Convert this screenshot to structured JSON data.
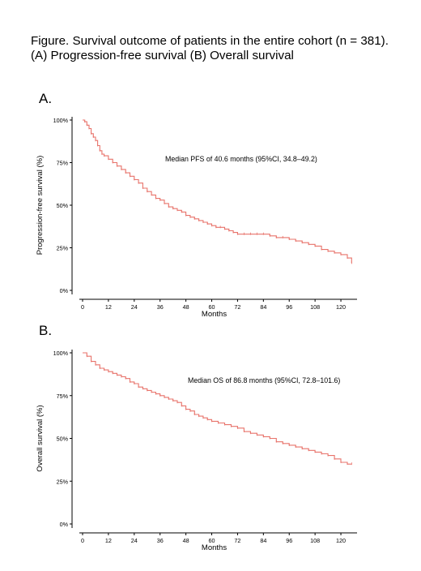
{
  "caption": {
    "line1": "Figure. Survival outcome of patients in the entire cohort (n = 381).",
    "line2": "(A) Progression-free survival (B) Overall survival"
  },
  "colors": {
    "curve": "#e8736b",
    "axis": "#000000"
  },
  "chart_data": [
    {
      "type": "line",
      "panel": "A.",
      "xlabel": "Months",
      "ylabel": "Progression-free survival (%)",
      "annotation": "Median PFS of 40.6 months (95%CI, 34.8–49.2)",
      "xlim": [
        0,
        126
      ],
      "ylim": [
        0,
        100
      ],
      "x_ticks": [
        "0",
        "12",
        "24",
        "36",
        "48",
        "60",
        "72",
        "84",
        "96",
        "108",
        "120"
      ],
      "y_ticks": [
        "0%",
        "25%",
        "50%",
        "75%",
        "100%"
      ],
      "grid": false,
      "series": [
        {
          "x": [
            0,
            1,
            2,
            3,
            4,
            5,
            6,
            7,
            8,
            9,
            10,
            12,
            14,
            16,
            18,
            20,
            22,
            24,
            26,
            28,
            30,
            32,
            34,
            36,
            38,
            40,
            42,
            44,
            46,
            48,
            50,
            52,
            54,
            56,
            58,
            60,
            62,
            64,
            66,
            68,
            70,
            72,
            75,
            78,
            81,
            84,
            87,
            90,
            93,
            96,
            99,
            102,
            105,
            108,
            111,
            114,
            117,
            120,
            123,
            125
          ],
          "y": [
            100,
            99,
            97,
            95,
            92,
            90,
            88,
            85,
            82,
            80,
            79,
            77,
            75,
            73,
            71,
            69,
            67,
            65,
            63,
            60,
            58,
            56,
            54,
            53,
            51,
            49,
            48,
            47,
            46,
            44,
            43,
            42,
            41,
            40,
            39,
            38,
            37,
            37,
            36,
            35,
            34,
            33,
            33,
            33,
            33,
            33,
            32,
            31,
            31,
            30,
            29,
            28,
            27,
            26,
            24,
            23,
            22,
            21,
            19,
            16
          ]
        }
      ]
    },
    {
      "type": "line",
      "panel": "B.",
      "xlabel": "Months",
      "ylabel": "Overall survival (%)",
      "annotation": "Median OS of 86.8 months (95%CI, 72.8–101.6)",
      "xlim": [
        0,
        126
      ],
      "ylim": [
        0,
        100
      ],
      "x_ticks": [
        "0",
        "12",
        "24",
        "36",
        "48",
        "60",
        "72",
        "84",
        "96",
        "108",
        "120"
      ],
      "y_ticks": [
        "0%",
        "25%",
        "50%",
        "75%",
        "100%"
      ],
      "grid": false,
      "series": [
        {
          "x": [
            0,
            2,
            4,
            6,
            8,
            10,
            12,
            14,
            16,
            18,
            20,
            22,
            24,
            26,
            28,
            30,
            32,
            34,
            36,
            38,
            40,
            42,
            44,
            46,
            48,
            50,
            52,
            54,
            56,
            58,
            60,
            63,
            66,
            69,
            72,
            75,
            78,
            81,
            84,
            87,
            90,
            93,
            96,
            99,
            102,
            105,
            108,
            111,
            114,
            117,
            120,
            123,
            125
          ],
          "y": [
            100,
            98,
            95,
            93,
            91,
            90,
            89,
            88,
            87,
            86,
            85,
            83,
            82,
            80,
            79,
            78,
            77,
            76,
            75,
            74,
            73,
            72,
            71,
            69,
            67,
            66,
            64,
            63,
            62,
            61,
            60,
            59,
            58,
            57,
            56,
            54,
            53,
            52,
            51,
            50,
            48,
            47,
            46,
            45,
            44,
            43,
            42,
            41,
            40,
            38,
            36,
            35,
            35
          ]
        }
      ]
    }
  ]
}
